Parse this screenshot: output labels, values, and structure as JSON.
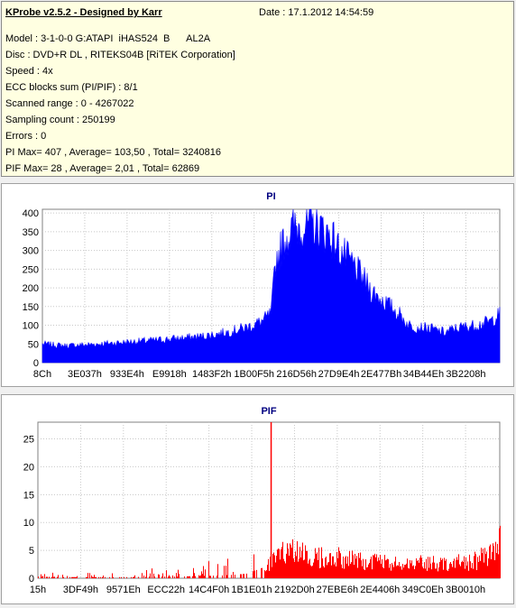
{
  "header": {
    "title": "KProbe v2.5.2 - Designed by Karr",
    "date": "Date : 17.1.2012 14:54:59",
    "lines": [
      "Model : 3-1-0-0 G:ATAPI  iHAS524  B      AL2A",
      "Disc : DVD+R DL , RITEKS04B [RiTEK Corporation]",
      "Speed : 4x",
      "ECC blocks sum (PI/PIF) : 8/1",
      "Scanned range : 0 - 4267022",
      "Sampling count : 250199",
      "Errors : 0",
      "PI Max= 407 , Average= 103,50 , Total= 3240816",
      "PIF Max= 28 , Average= 2,01 , Total= 62869"
    ]
  },
  "chart_data": [
    {
      "type": "area",
      "title": "PI",
      "xlabel": "",
      "ylabel": "",
      "ylim": [
        0,
        410
      ],
      "yticks": [
        0,
        50,
        100,
        150,
        200,
        250,
        300,
        350,
        400
      ],
      "xticks": [
        "8Ch",
        "3E037h",
        "933E4h",
        "E9918h",
        "1483F2h",
        "1B00F5h",
        "216D56h",
        "27D9E4h",
        "2E477Bh",
        "34B44Eh",
        "3B2208h"
      ],
      "grid": true,
      "color": "#0000ff",
      "x": [
        0,
        0.05,
        0.1,
        0.15,
        0.2,
        0.25,
        0.3,
        0.35,
        0.4,
        0.45,
        0.48,
        0.5,
        0.51,
        0.53,
        0.55,
        0.58,
        0.6,
        0.63,
        0.65,
        0.68,
        0.7,
        0.72,
        0.75,
        0.78,
        0.8,
        0.82,
        0.85,
        0.88,
        0.9,
        0.92,
        0.95,
        0.98,
        1.0
      ],
      "values": [
        50,
        45,
        48,
        52,
        56,
        60,
        65,
        70,
        80,
        95,
        110,
        130,
        270,
        330,
        360,
        370,
        365,
        340,
        300,
        260,
        225,
        190,
        160,
        130,
        100,
        95,
        90,
        80,
        90,
        95,
        100,
        110,
        130
      ]
    },
    {
      "type": "bar",
      "title": "PIF",
      "xlabel": "",
      "ylabel": "",
      "ylim": [
        0,
        28
      ],
      "yticks": [
        0,
        5,
        10,
        15,
        20,
        25
      ],
      "ytick_labels": [
        "0",
        "5",
        "10",
        "15",
        "20",
        "25"
      ],
      "xticks": [
        "15h",
        "3DF49h",
        "9571Eh",
        "ECC22h",
        "14C4F0h",
        "1B1E01h",
        "2192D0h",
        "27EBE6h",
        "2E4406h",
        "349C0Eh",
        "3B0010h"
      ],
      "grid": true,
      "color": "#ff0000",
      "spike": {
        "x": 0.505,
        "value": 28
      },
      "x": [
        0,
        0.05,
        0.1,
        0.15,
        0.2,
        0.25,
        0.3,
        0.35,
        0.4,
        0.45,
        0.49,
        0.5,
        0.51,
        0.55,
        0.6,
        0.65,
        0.7,
        0.75,
        0.8,
        0.85,
        0.9,
        0.95,
        0.98,
        1.0
      ],
      "values": [
        0.3,
        0.2,
        0.2,
        0.2,
        0.2,
        0.3,
        0.3,
        0.4,
        0.5,
        0.8,
        2,
        3,
        4.5,
        5,
        4.5,
        4,
        3.5,
        3,
        3,
        3,
        3,
        3.5,
        5,
        7
      ]
    }
  ]
}
